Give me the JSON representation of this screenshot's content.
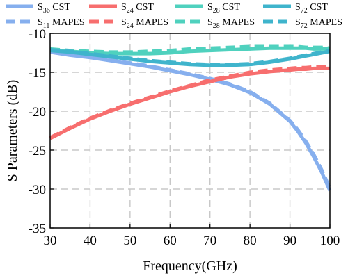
{
  "chart_data": {
    "type": "line",
    "title": "",
    "xlabel": "Frequency(GHz)",
    "ylabel": "S Parameters (dB)",
    "xlim": [
      30,
      100
    ],
    "ylim": [
      -35,
      -10
    ],
    "xticks": [
      30,
      40,
      50,
      60,
      70,
      80,
      90,
      100
    ],
    "yticks": [
      -35,
      -30,
      -25,
      -20,
      -15,
      -10
    ],
    "grid": true,
    "legend_position": "top",
    "x": [
      30,
      35,
      40,
      45,
      50,
      55,
      60,
      65,
      70,
      75,
      80,
      85,
      90,
      92,
      94,
      96,
      98,
      100
    ],
    "series": [
      {
        "name": "S36 CST",
        "sub": "36",
        "suffix": "CST",
        "color": "#86afee",
        "dash": "solid",
        "values": [
          -12.4,
          -12.8,
          -13.1,
          -13.5,
          -13.9,
          -14.3,
          -14.8,
          -15.3,
          -15.9,
          -16.6,
          -17.6,
          -19.1,
          -21.3,
          -22.6,
          -24.1,
          -25.9,
          -27.9,
          -30.2
        ]
      },
      {
        "name": "S11 MAPES",
        "sub": "11",
        "suffix": "MAPES",
        "color": "#86afee",
        "dash": "dash",
        "values": [
          -12.3,
          -12.7,
          -13.0,
          -13.4,
          -13.8,
          -14.2,
          -14.7,
          -15.2,
          -15.8,
          -16.5,
          -17.5,
          -19.0,
          -21.2,
          -22.4,
          -23.9,
          -25.6,
          -27.6,
          -29.9
        ]
      },
      {
        "name": "S24 CST",
        "sub": "24",
        "suffix": "CST",
        "color": "#f76e6e",
        "dash": "solid",
        "values": [
          -23.5,
          -22.2,
          -21.0,
          -20.0,
          -19.1,
          -18.3,
          -17.5,
          -16.8,
          -16.2,
          -15.6,
          -15.2,
          -14.9,
          -14.7,
          -14.6,
          -14.6,
          -14.5,
          -14.5,
          -14.5
        ]
      },
      {
        "name": "S24 MAPES",
        "sub": "24",
        "suffix": "MAPES",
        "color": "#f76e6e",
        "dash": "dash",
        "values": [
          -23.4,
          -22.1,
          -20.9,
          -19.9,
          -19.0,
          -18.2,
          -17.4,
          -16.7,
          -16.0,
          -15.5,
          -15.0,
          -14.7,
          -14.5,
          -14.4,
          -14.4,
          -14.3,
          -14.3,
          -14.3
        ]
      },
      {
        "name": "S28 CST",
        "sub": "28",
        "suffix": "CST",
        "color": "#4fd1be",
        "dash": "solid",
        "values": [
          -12.1,
          -12.3,
          -12.5,
          -12.6,
          -12.6,
          -12.6,
          -12.5,
          -12.3,
          -12.2,
          -12.1,
          -12.0,
          -11.9,
          -11.9,
          -11.9,
          -11.9,
          -12.0,
          -12.0,
          -12.0
        ]
      },
      {
        "name": "S28 MAPES",
        "sub": "28",
        "suffix": "MAPES",
        "color": "#4fd1be",
        "dash": "dash",
        "values": [
          -12.0,
          -12.2,
          -12.3,
          -12.4,
          -12.4,
          -12.3,
          -12.2,
          -12.0,
          -11.9,
          -11.8,
          -11.7,
          -11.7,
          -11.7,
          -11.7,
          -11.8,
          -11.8,
          -11.8,
          -11.9
        ]
      },
      {
        "name": "S72 CST",
        "sub": "72",
        "suffix": "CST",
        "color": "#3fb4cc",
        "dash": "solid",
        "values": [
          -12.2,
          -12.4,
          -12.7,
          -13.0,
          -13.3,
          -13.6,
          -13.8,
          -14.0,
          -14.1,
          -14.1,
          -14.0,
          -13.7,
          -13.3,
          -13.1,
          -12.9,
          -12.7,
          -12.5,
          -12.3
        ]
      },
      {
        "name": "S72 MAPES",
        "sub": "72",
        "suffix": "MAPES",
        "color": "#3fb4cc",
        "dash": "dash",
        "values": [
          -12.1,
          -12.3,
          -12.6,
          -12.9,
          -13.2,
          -13.5,
          -13.7,
          -13.9,
          -14.0,
          -14.0,
          -13.9,
          -13.6,
          -13.2,
          -13.0,
          -12.8,
          -12.6,
          -12.4,
          -12.2
        ]
      }
    ]
  }
}
